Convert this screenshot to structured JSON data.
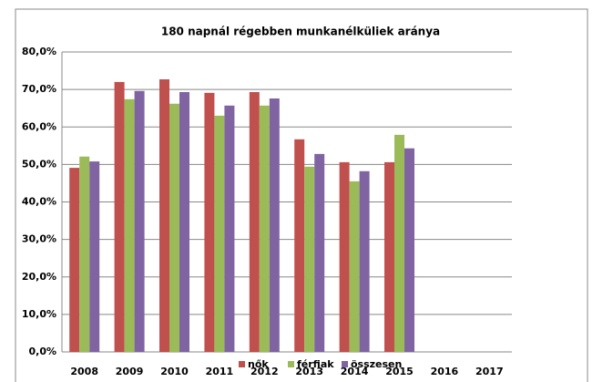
{
  "chart_data": {
    "type": "bar",
    "title": "180 napnál régebben munkanélküliek aránya",
    "categories": [
      "2008",
      "2009",
      "2010",
      "2011",
      "2012",
      "2013",
      "2014",
      "2015",
      "2016",
      "2017"
    ],
    "series": [
      {
        "name": "nők",
        "color": "#c0504d",
        "values": [
          49.1,
          72.0,
          72.7,
          69.1,
          69.3,
          56.7,
          50.6,
          50.6,
          null,
          null
        ]
      },
      {
        "name": "férfiak",
        "color": "#9bbb59",
        "values": [
          52.1,
          67.4,
          66.2,
          63.0,
          65.7,
          49.4,
          45.5,
          57.9,
          null,
          null
        ]
      },
      {
        "name": "összesen",
        "color": "#8064a2",
        "values": [
          50.8,
          69.6,
          69.3,
          65.7,
          67.6,
          52.8,
          48.2,
          54.3,
          null,
          null
        ]
      }
    ],
    "ylim": [
      0,
      80
    ],
    "yticks": [
      {
        "value": 0,
        "label": "0,0%"
      },
      {
        "value": 10,
        "label": "10,0%"
      },
      {
        "value": 20,
        "label": "20,0%"
      },
      {
        "value": 30,
        "label": "30,0%"
      },
      {
        "value": 40,
        "label": "40,0%"
      },
      {
        "value": 50,
        "label": "50,0%"
      },
      {
        "value": 60,
        "label": "60,0%"
      },
      {
        "value": 70,
        "label": "70,0%"
      },
      {
        "value": 80,
        "label": "80,0%"
      }
    ],
    "grid": true,
    "legend": "bottom"
  }
}
